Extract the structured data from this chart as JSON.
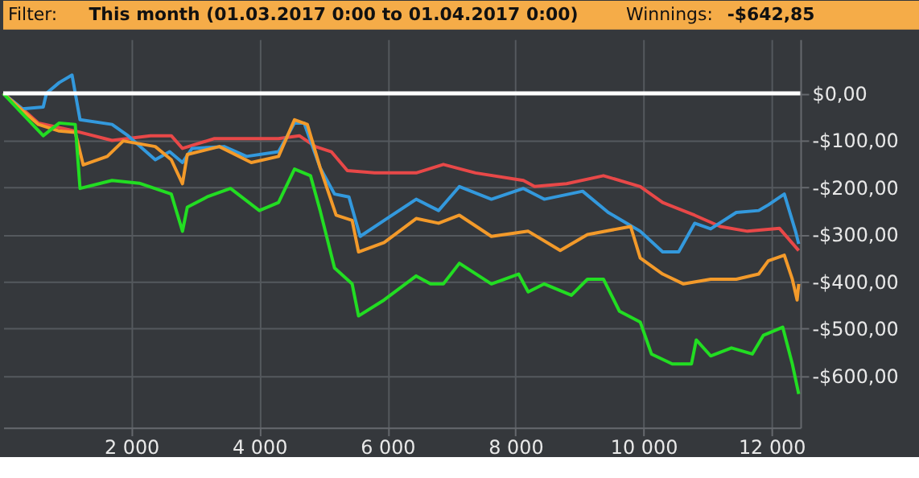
{
  "chart_data": {
    "type": "line",
    "title": "Filter: This month (01.03.2017 0:00 to 01.04.2017 0:00)",
    "annotations": [
      "Winnings: -$642,85"
    ],
    "series": [
      {
        "color": "#e84848",
        "x": [
          0,
          300,
          550,
          1125,
          1700,
          2300,
          2625,
          2800,
          3300,
          3625,
          4300,
          4625,
          4875,
          5125,
          5375,
          5800,
          6450,
          6875,
          7375,
          8125,
          8300,
          8800,
          9375,
          9950,
          10300,
          10800,
          11200,
          11625,
          12125,
          12425
        ],
        "values": [
          0,
          -33,
          -63,
          -80,
          -100,
          -90,
          -90,
          -117,
          -96,
          -96,
          -96,
          -90,
          -113,
          -124,
          -164,
          -169,
          -169,
          -151,
          -169,
          -185,
          -198,
          -192,
          -175,
          -198,
          -232,
          -259,
          -283,
          -293,
          -287,
          -334
        ]
      },
      {
        "color": "#3399dd",
        "x": [
          0,
          300,
          625,
          675,
          875,
          1075,
          1200,
          1700,
          1950,
          2375,
          2600,
          2800,
          2950,
          3450,
          3800,
          4300,
          4550,
          4700,
          4950,
          5175,
          5400,
          5575,
          5950,
          6450,
          6800,
          7125,
          7625,
          8125,
          8450,
          9050,
          9450,
          9950,
          10300,
          10550,
          10800,
          11050,
          11450,
          11800,
          11950,
          12200,
          12375,
          12425
        ],
        "values": [
          0,
          -33,
          -29,
          0,
          23,
          39,
          -56,
          -66,
          -90,
          -141,
          -124,
          -147,
          -117,
          -113,
          -134,
          -124,
          -63,
          -63,
          -158,
          -214,
          -220,
          -304,
          -270,
          -225,
          -249,
          -198,
          -225,
          -202,
          -225,
          -208,
          -253,
          -293,
          -337,
          -337,
          -276,
          -288,
          -253,
          -249,
          -237,
          -214,
          -293,
          -320
        ]
      },
      {
        "color": "#f39a2a",
        "x": [
          0,
          550,
          875,
          1125,
          1250,
          1625,
          1875,
          2375,
          2625,
          2800,
          2875,
          3375,
          3875,
          4300,
          4550,
          4750,
          4950,
          5200,
          5450,
          5550,
          5950,
          6450,
          6800,
          7125,
          7625,
          8200,
          8700,
          9125,
          9800,
          9950,
          10300,
          10625,
          11050,
          11450,
          11800,
          11950,
          12200,
          12325,
          12400,
          12425
        ],
        "values": [
          0,
          -66,
          -80,
          -83,
          -152,
          -134,
          -101,
          -113,
          -141,
          -192,
          -130,
          -113,
          -147,
          -134,
          -56,
          -66,
          -158,
          -259,
          -270,
          -337,
          -317,
          -266,
          -276,
          -259,
          -304,
          -293,
          -334,
          -300,
          -283,
          -350,
          -384,
          -405,
          -395,
          -395,
          -384,
          -356,
          -344,
          -395,
          -439,
          -405
        ]
      },
      {
        "color": "#22dd22",
        "x": [
          0,
          625,
          875,
          1125,
          1200,
          1700,
          2125,
          2625,
          2800,
          2875,
          3200,
          3550,
          4000,
          4300,
          4550,
          4800,
          4950,
          5175,
          5450,
          5550,
          5950,
          6450,
          6675,
          6875,
          7125,
          7625,
          8050,
          8200,
          8450,
          8875,
          9125,
          9375,
          9625,
          9950,
          10125,
          10450,
          10750,
          10825,
          11050,
          11375,
          11700,
          11875,
          12175,
          12325,
          12425
        ],
        "values": [
          0,
          -90,
          -63,
          -66,
          -202,
          -185,
          -191,
          -214,
          -293,
          -242,
          -219,
          -202,
          -249,
          -232,
          -161,
          -175,
          -249,
          -371,
          -405,
          -473,
          -439,
          -388,
          -405,
          -405,
          -361,
          -405,
          -384,
          -422,
          -405,
          -429,
          -395,
          -395,
          -463,
          -486,
          -554,
          -575,
          -575,
          -524,
          -558,
          -541,
          -554,
          -514,
          -497,
          -575,
          -639
        ]
      }
    ],
    "xlim": [
      0,
      12450
    ],
    "xticks": [
      {
        "value": 2000,
        "label": "2 000"
      },
      {
        "value": 4000,
        "label": "4 000"
      },
      {
        "value": 6000,
        "label": "6 000"
      },
      {
        "value": 8000,
        "label": "8 000"
      },
      {
        "value": 10000,
        "label": "10 000"
      },
      {
        "value": 12000,
        "label": "12 000"
      }
    ],
    "ylim": [
      -710,
      115
    ],
    "yticks": [
      {
        "value": 0,
        "label": "$0,00"
      },
      {
        "value": -100,
        "label": "-$100,00"
      },
      {
        "value": -200,
        "label": "-$200,00"
      },
      {
        "value": -300,
        "label": "-$300,00"
      },
      {
        "value": -400,
        "label": "-$400,00"
      },
      {
        "value": -500,
        "label": "-$500,00"
      },
      {
        "value": -600,
        "label": "-$600,00"
      }
    ],
    "ref_lines": [
      {
        "axis": "y",
        "value": 0,
        "color": "#ffffff"
      }
    ],
    "grid": true
  }
}
